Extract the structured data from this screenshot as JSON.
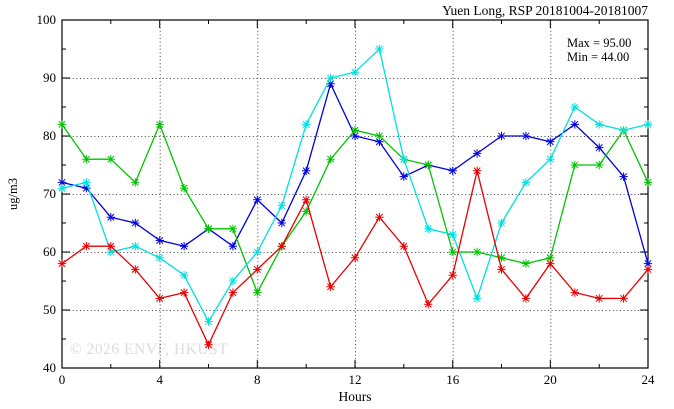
{
  "title": "Yuen Long, RSP 20181004-20181007",
  "watermark": "© 2026 ENVF, HKUST",
  "colors": {
    "blue": "#0000dd",
    "green": "#00c400",
    "cyan": "#00e0e0",
    "red": "#e80000",
    "watermark_gray": "#dcdcdc",
    "axis_black": "#000000"
  },
  "chart_data": {
    "type": "line",
    "title": "Yuen Long, RSP 20181004-20181007",
    "xlabel": "Hours",
    "ylabel": "ug/m3",
    "xlim": [
      0,
      24
    ],
    "ylim": [
      40,
      100
    ],
    "x_tick_labels": [
      0,
      4,
      8,
      12,
      16,
      20,
      24
    ],
    "x_minor_tick_step": 2,
    "y_tick_labels": [
      40,
      50,
      60,
      70,
      80,
      90,
      100
    ],
    "y_minor_tick_step": 5,
    "grid": "dotted",
    "legend_position": "none",
    "annotations": [
      "Max = 95.00",
      "Min = 44.00"
    ],
    "max": 95.0,
    "min": 44.0,
    "x": [
      0,
      1,
      2,
      3,
      4,
      5,
      6,
      7,
      8,
      9,
      10,
      11,
      12,
      13,
      14,
      15,
      16,
      17,
      18,
      19,
      20,
      21,
      22,
      23,
      24
    ],
    "series": [
      {
        "name": "blue",
        "color": "#0000dd",
        "values": [
          72,
          71,
          66,
          65,
          62,
          61,
          64,
          61,
          69,
          65,
          74,
          89,
          80,
          79,
          73,
          75,
          74,
          77,
          80,
          80,
          79,
          82,
          78,
          73,
          58
        ]
      },
      {
        "name": "green",
        "color": "#00c400",
        "values": [
          82,
          76,
          76,
          72,
          82,
          71,
          64,
          64,
          53,
          61,
          67,
          76,
          81,
          80,
          76,
          75,
          60,
          60,
          59,
          58,
          59,
          75,
          75,
          81,
          72
        ]
      },
      {
        "name": "cyan",
        "color": "#00e0e0",
        "values": [
          71,
          72,
          60,
          61,
          59,
          56,
          48,
          55,
          60,
          68,
          82,
          90,
          91,
          95,
          76,
          64,
          63,
          52,
          65,
          72,
          76,
          85,
          82,
          81,
          82
        ]
      },
      {
        "name": "red",
        "color": "#e80000",
        "values": [
          58,
          61,
          61,
          57,
          52,
          53,
          44,
          53,
          57,
          61,
          69,
          54,
          59,
          66,
          61,
          51,
          56,
          74,
          57,
          52,
          58,
          53,
          52,
          52,
          57
        ]
      }
    ]
  }
}
